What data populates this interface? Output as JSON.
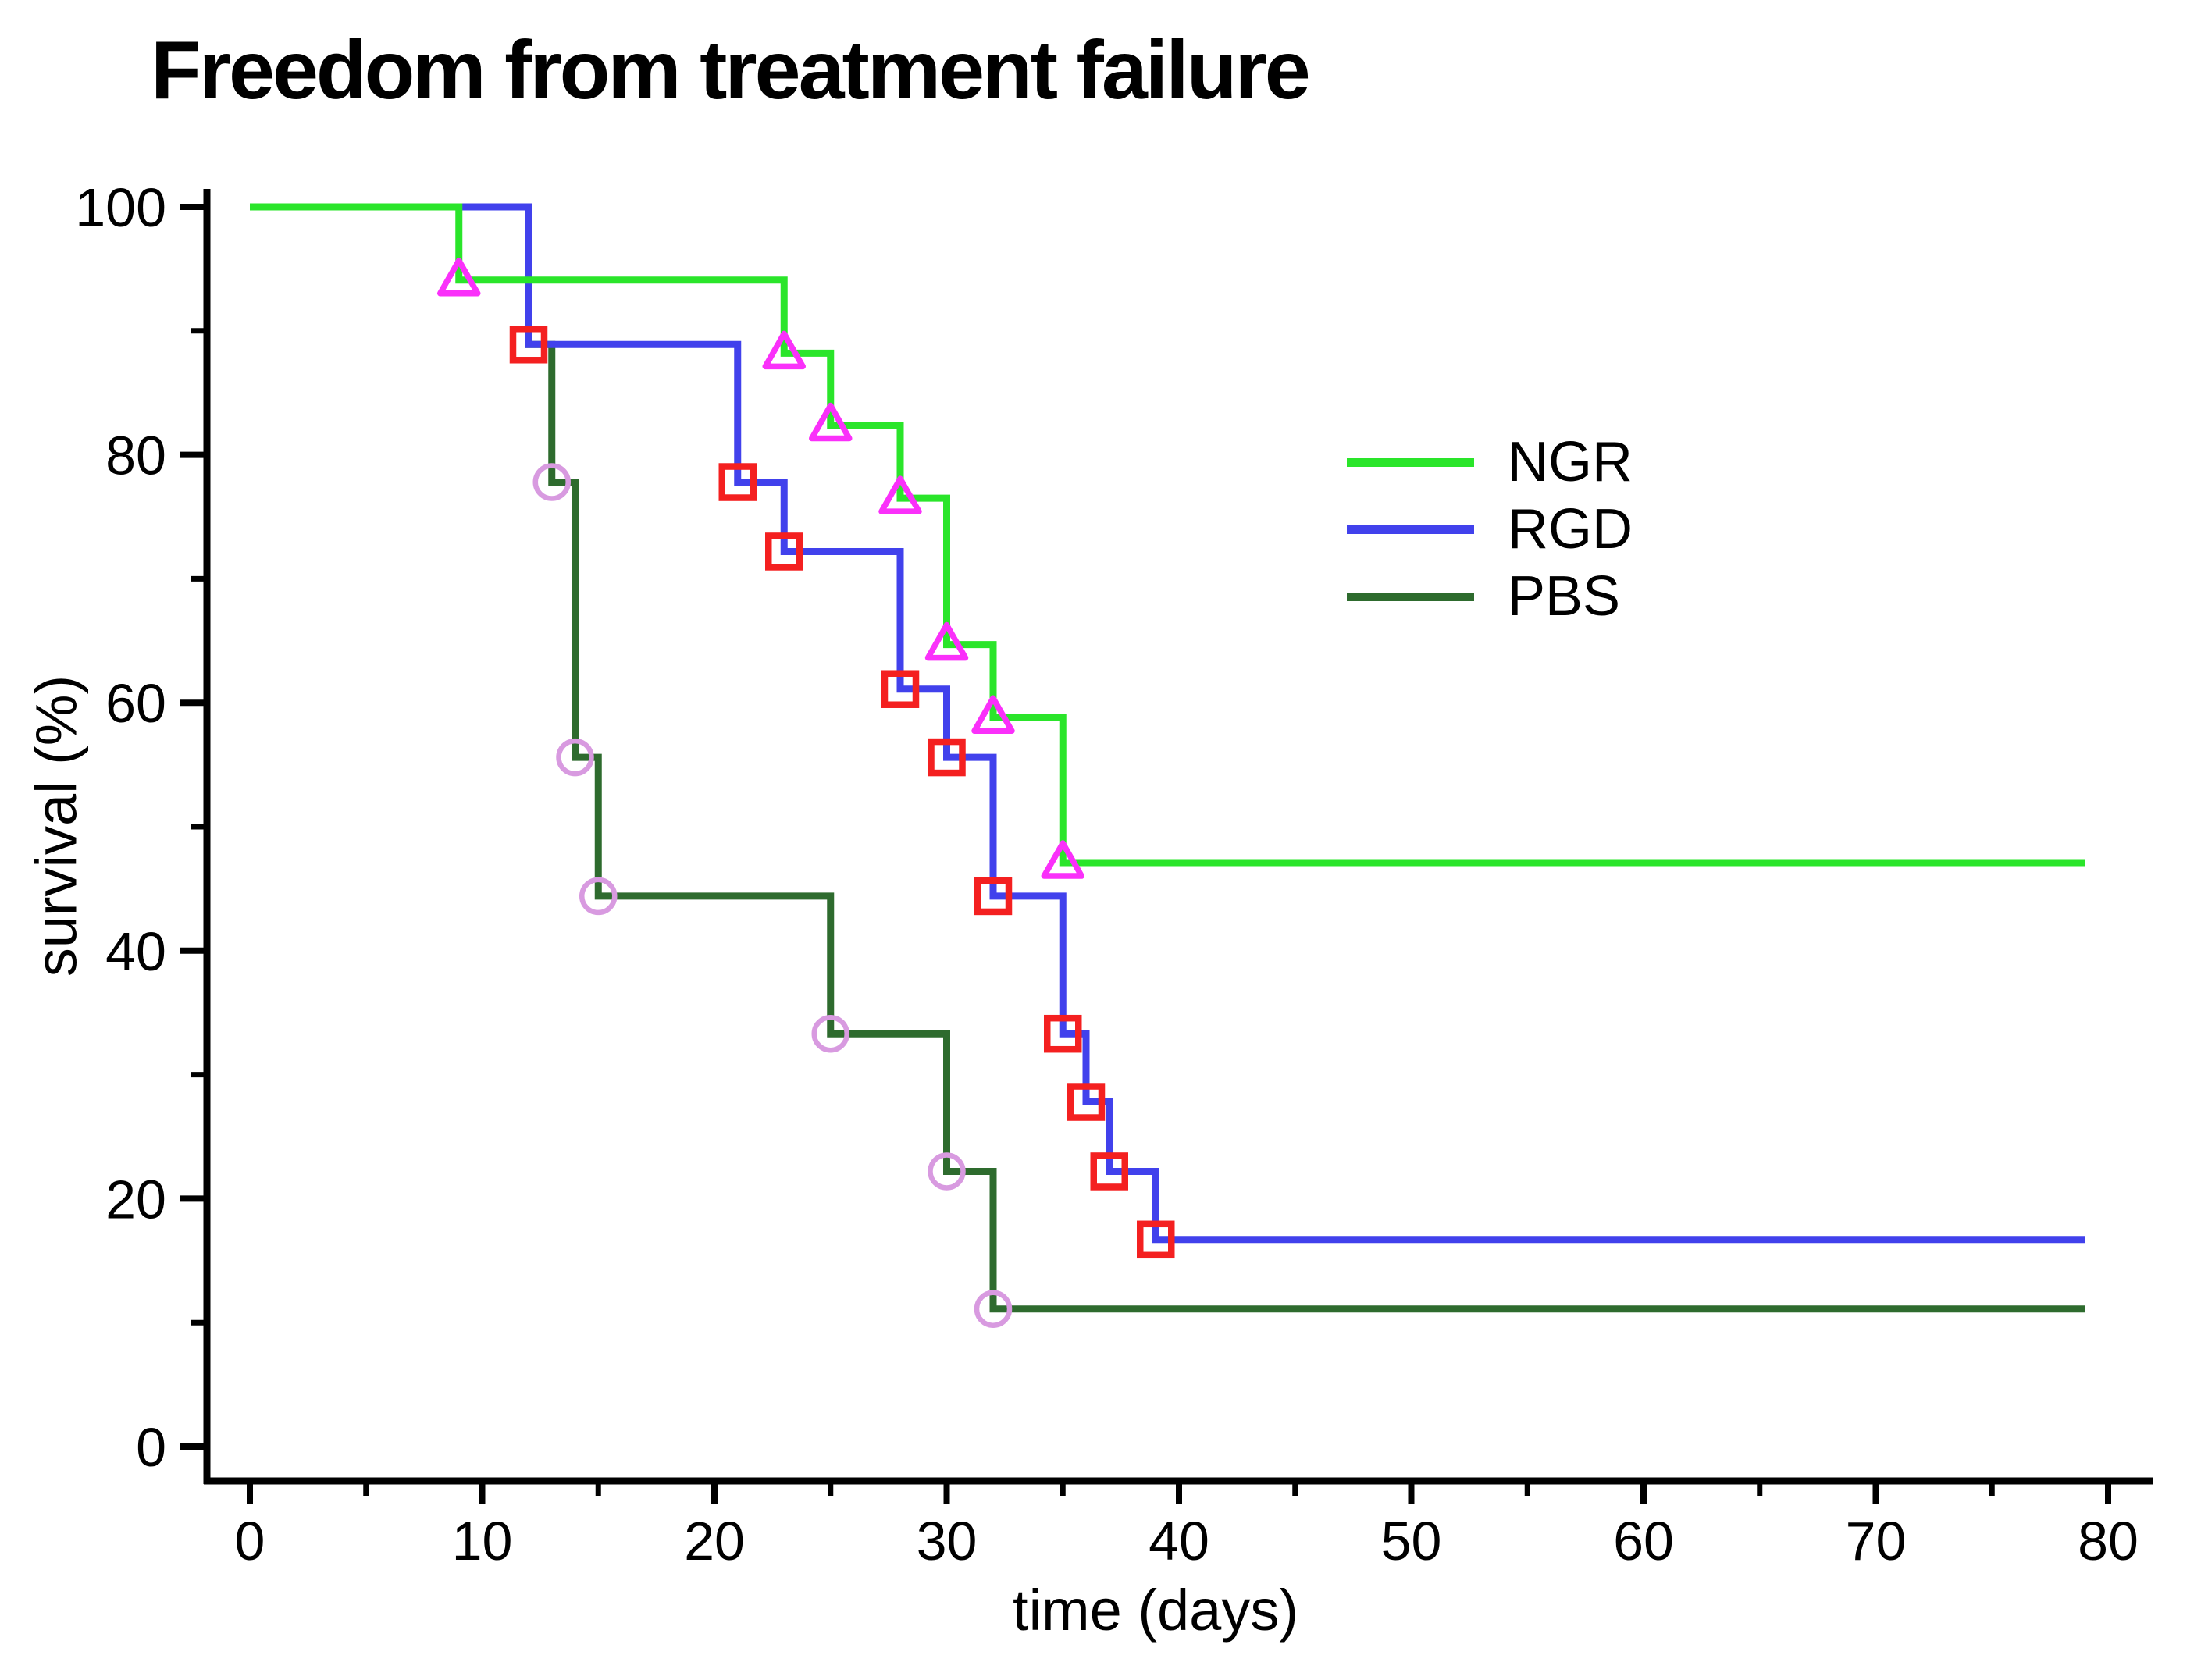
{
  "title": "Freedom from treatment failure",
  "axes": {
    "x": {
      "label": "time (days)",
      "min": 0,
      "max": 80,
      "major_ticks": [
        0,
        10,
        20,
        30,
        40,
        50,
        60,
        70,
        80
      ],
      "minor_ticks": [
        5,
        15,
        25,
        35,
        45,
        55,
        65,
        75
      ]
    },
    "y": {
      "label": "survival (%)",
      "min": 0,
      "max": 100,
      "major_ticks": [
        0,
        20,
        40,
        60,
        80,
        100
      ],
      "minor_ticks": [
        10,
        30,
        50,
        70,
        90
      ]
    }
  },
  "legend": {
    "items": [
      {
        "label": "NGR",
        "color": "#2ae52a"
      },
      {
        "label": "RGD",
        "color": "#4141ec"
      },
      {
        "label": "PBS",
        "color": "#2e6b2e"
      }
    ]
  },
  "chart_data": {
    "type": "line",
    "subtype": "kaplan-meier-step",
    "title": "Freedom from treatment failure",
    "xlabel": "time (days)",
    "ylabel": "survival (%)",
    "xlim": [
      0,
      80
    ],
    "ylim": [
      0,
      100
    ],
    "grid": false,
    "legend_position": "upper right",
    "end_time": 79,
    "series": [
      {
        "name": "PBS",
        "color": "#2e6b2e",
        "marker": {
          "shape": "circle",
          "color": "#d89ae0"
        },
        "start": [
          0,
          100
        ],
        "events": [
          [
            12,
            88.9
          ],
          [
            13,
            77.8
          ],
          [
            14,
            55.6
          ],
          [
            15,
            44.4
          ],
          [
            25,
            33.3
          ],
          [
            30,
            22.2
          ],
          [
            32,
            11.1
          ]
        ],
        "hidden_marker_times": [
          12
        ],
        "final_value": 11.1
      },
      {
        "name": "RGD",
        "color": "#4141ec",
        "marker": {
          "shape": "square",
          "color": "#f42020"
        },
        "start": [
          0,
          100
        ],
        "events": [
          [
            12,
            88.9
          ],
          [
            21,
            77.8
          ],
          [
            23,
            72.2
          ],
          [
            28,
            61.1
          ],
          [
            30,
            55.6
          ],
          [
            32,
            44.4
          ],
          [
            35,
            33.3
          ],
          [
            36,
            27.8
          ],
          [
            37,
            22.2
          ],
          [
            39,
            16.7
          ]
        ],
        "hidden_marker_times": [],
        "final_value": 16.7
      },
      {
        "name": "NGR",
        "color": "#2ae52a",
        "marker": {
          "shape": "triangle",
          "color": "#fa30fa"
        },
        "start": [
          0,
          100
        ],
        "events": [
          [
            9,
            94.1
          ],
          [
            23,
            88.2
          ],
          [
            25,
            82.4
          ],
          [
            28,
            76.5
          ],
          [
            30,
            64.7
          ],
          [
            32,
            58.8
          ],
          [
            35,
            47.1
          ]
        ],
        "hidden_marker_times": [],
        "final_value": 47.1
      }
    ]
  }
}
